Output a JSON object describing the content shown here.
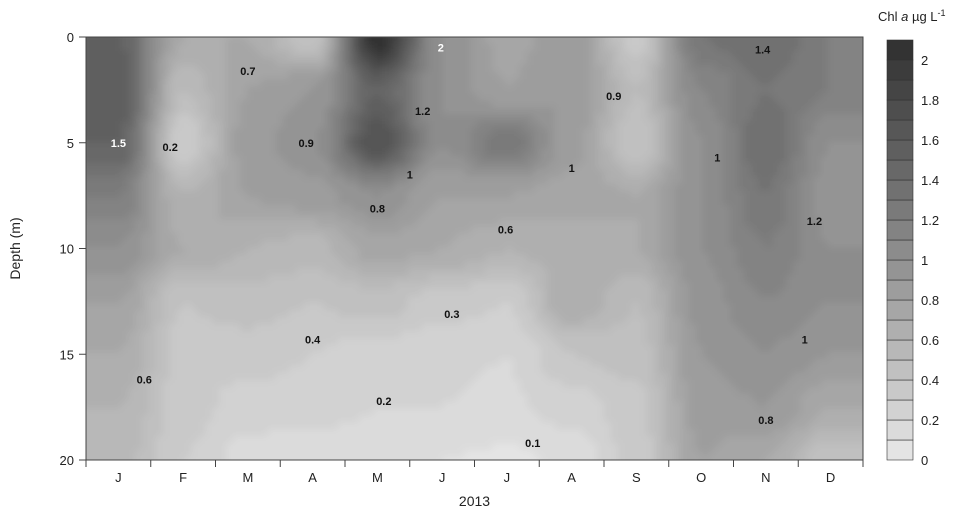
{
  "chart_data": {
    "type": "heatmap",
    "subtype": "filled-contour",
    "xlabel": "2013",
    "ylabel": "Depth (m)",
    "x_categories": [
      "J",
      "F",
      "M",
      "A",
      "M",
      "J",
      "J",
      "A",
      "S",
      "O",
      "N",
      "D"
    ],
    "y_ticks": [
      0,
      5,
      10,
      15,
      20
    ],
    "ylim": [
      0,
      20
    ],
    "y_inverted": true,
    "colorbar": {
      "title_parts": [
        "Chl ",
        "a",
        " µg L",
        "-1"
      ],
      "min": 0,
      "max": 2.1,
      "step": 0.1,
      "tick_values": [
        0,
        0.2,
        0.4,
        0.6,
        0.8,
        1,
        1.2,
        1.4,
        1.6,
        1.8,
        2
      ],
      "tick_labels": [
        "0",
        "0.2",
        "0.4",
        "0.6",
        "0.8",
        "1",
        "1.2",
        "1.4",
        "1.6",
        "1.8",
        "2"
      ],
      "color_low": "#e8e8e8",
      "color_high": "#2f2f2f"
    },
    "grid": [
      [
        1.5,
        0.7,
        0.7,
        0.4,
        2.1,
        1.0,
        0.75,
        0.9,
        0.35,
        1.3,
        1.4,
        1.2
      ],
      [
        1.6,
        0.5,
        0.8,
        0.9,
        1.5,
        1.0,
        0.8,
        0.9,
        0.5,
        1.1,
        1.3,
        1.2
      ],
      [
        1.5,
        0.3,
        0.85,
        1.0,
        1.7,
        1.0,
        1.3,
        0.85,
        0.4,
        1.0,
        1.4,
        1.0
      ],
      [
        1.2,
        0.6,
        0.8,
        0.85,
        1.0,
        0.8,
        0.8,
        0.75,
        0.7,
        1.0,
        1.3,
        0.95
      ],
      [
        1.0,
        0.7,
        0.6,
        0.55,
        0.75,
        0.7,
        0.6,
        0.65,
        0.7,
        1.0,
        1.2,
        1.0
      ],
      [
        0.8,
        0.4,
        0.45,
        0.4,
        0.45,
        0.35,
        0.3,
        0.7,
        0.5,
        0.95,
        1.1,
        1.0
      ],
      [
        0.7,
        0.35,
        0.35,
        0.3,
        0.25,
        0.22,
        0.2,
        0.4,
        0.45,
        0.9,
        1.0,
        0.9
      ],
      [
        0.6,
        0.35,
        0.25,
        0.25,
        0.2,
        0.2,
        0.18,
        0.25,
        0.35,
        0.85,
        0.9,
        0.7
      ],
      [
        0.55,
        0.3,
        0.15,
        0.12,
        0.1,
        0.1,
        0.08,
        0.12,
        0.35,
        0.8,
        0.7,
        0.4
      ]
    ],
    "annotations": [
      {
        "text": "1.5",
        "month": 0.0,
        "depth": 5,
        "light": true
      },
      {
        "text": "0.2",
        "month": 0.8,
        "depth": 5.2,
        "light": false
      },
      {
        "text": "0.7",
        "month": 2.0,
        "depth": 1.6,
        "light": false
      },
      {
        "text": "0.9",
        "month": 2.9,
        "depth": 5,
        "light": false
      },
      {
        "text": "2",
        "month": 4.98,
        "depth": 0.5,
        "light": true
      },
      {
        "text": "1.2",
        "month": 4.7,
        "depth": 3.5,
        "light": false
      },
      {
        "text": "1",
        "month": 4.5,
        "depth": 6.5,
        "light": false
      },
      {
        "text": "0.8",
        "month": 4.0,
        "depth": 8.1,
        "light": false
      },
      {
        "text": "0.6",
        "month": 5.98,
        "depth": 9.1,
        "light": false
      },
      {
        "text": "1",
        "month": 7.0,
        "depth": 6.2,
        "light": false
      },
      {
        "text": "0.9",
        "month": 7.65,
        "depth": 2.8,
        "light": false
      },
      {
        "text": "1.4",
        "month": 9.95,
        "depth": 0.6,
        "light": false
      },
      {
        "text": "1",
        "month": 9.25,
        "depth": 5.7,
        "light": false
      },
      {
        "text": "1.2",
        "month": 10.75,
        "depth": 8.7,
        "light": false
      },
      {
        "text": "1",
        "month": 10.6,
        "depth": 14.3,
        "light": false
      },
      {
        "text": "0.8",
        "month": 10.0,
        "depth": 18.1,
        "light": false
      },
      {
        "text": "0.4",
        "month": 3.0,
        "depth": 14.3,
        "light": false
      },
      {
        "text": "0.3",
        "month": 5.15,
        "depth": 13.1,
        "light": false
      },
      {
        "text": "0.2",
        "month": 4.1,
        "depth": 17.2,
        "light": false
      },
      {
        "text": "0.1",
        "month": 6.4,
        "depth": 19.2,
        "light": false
      },
      {
        "text": "0.6",
        "month": 0.4,
        "depth": 16.2,
        "light": false
      }
    ]
  }
}
